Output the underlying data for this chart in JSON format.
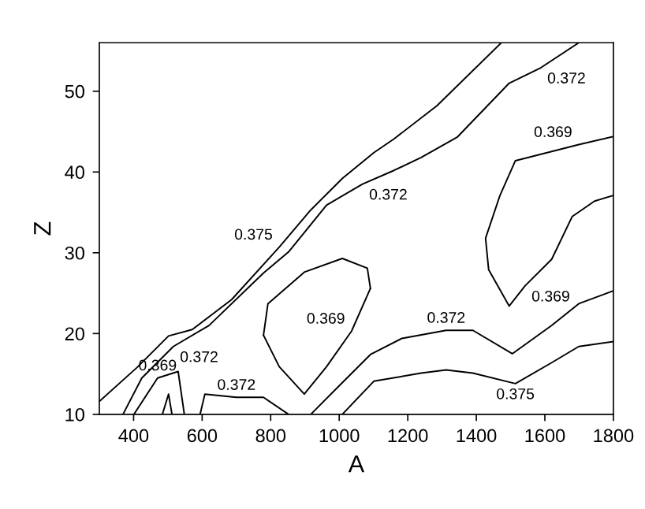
{
  "chart_data": {
    "type": "line",
    "xlabel": "A",
    "ylabel": "Z",
    "xlim": [
      300,
      1800
    ],
    "ylim": [
      10,
      56
    ],
    "xticks": [
      400,
      600,
      800,
      1000,
      1200,
      1400,
      1600,
      1800
    ],
    "yticks": [
      10,
      20,
      30,
      40,
      50
    ],
    "grid": false,
    "legend": false,
    "marker": "none",
    "line_style": "solid",
    "series": [
      {
        "color": "#000000",
        "x": [
          300,
          410,
          502,
          571,
          686,
          825,
          917,
          1009,
          1101,
          1160,
          1285,
          1473
        ],
        "values": [
          11.6,
          15.8,
          19.7,
          20.5,
          24.2,
          30.7,
          35.3,
          39.2,
          42.4,
          44.1,
          48.2,
          56
        ]
      },
      {
        "color": "#000000",
        "x": [
          369,
          424,
          516,
          620,
          779,
          852,
          963,
          1068,
          1160,
          1239,
          1344,
          1496,
          1588,
          1699
        ],
        "values": [
          10,
          14.5,
          18.4,
          21.0,
          27.5,
          30.1,
          35.9,
          38.5,
          40.2,
          41.8,
          44.3,
          51.0,
          52.9,
          56
        ]
      },
      {
        "color": "#000000",
        "x": [
          401,
          470,
          530,
          548
        ],
        "values": [
          10,
          14.5,
          15.3,
          10
        ]
      },
      {
        "color": "#000000",
        "x": [
          484,
          502,
          512
        ],
        "values": [
          10,
          12.5,
          10
        ]
      },
      {
        "color": "#000000",
        "x": [
          594,
          608,
          700,
          779,
          852
        ],
        "values": [
          10,
          12.5,
          12.1,
          12.1,
          10
        ]
      },
      {
        "color": "#000000",
        "x": [
          779,
          792,
          898,
          1009,
          1082,
          1091
        ],
        "values": [
          19.8,
          23.7,
          27.6,
          29.3,
          28.1,
          25.6
        ]
      },
      {
        "color": "#000000",
        "x": [
          779,
          825,
          898,
          963,
          1036,
          1091
        ],
        "values": [
          19.8,
          15.9,
          12.5,
          15.9,
          20.3,
          25.6
        ]
      },
      {
        "color": "#000000",
        "x": [
          917,
          999,
          1091,
          1183,
          1312,
          1390,
          1505,
          1620,
          1699,
          1800
        ],
        "values": [
          10,
          13.5,
          17.4,
          19.4,
          20.4,
          20.4,
          17.5,
          21.0,
          23.7,
          25.3
        ]
      },
      {
        "color": "#000000",
        "x": [
          1009,
          1101,
          1239,
          1312,
          1390,
          1514,
          1620,
          1699,
          1800
        ],
        "values": [
          10,
          14.1,
          15.1,
          15.5,
          15.1,
          13.8,
          16.4,
          18.4,
          19.0
        ]
      },
      {
        "color": "#000000",
        "x": [
          1800,
          1745,
          1680,
          1620,
          1542,
          1496,
          1436,
          1427,
          1469,
          1514,
          1699,
          1800
        ],
        "values": [
          37.1,
          36.4,
          34.5,
          29.2,
          25.9,
          23.4,
          27.9,
          31.8,
          37.1,
          41.4,
          43.4,
          44.4
        ]
      }
    ],
    "annotations": [
      {
        "text": "0.375",
        "x": 825,
        "y": 30.7
      },
      {
        "text": "0.372",
        "x": 1068,
        "y": 38.5
      },
      {
        "text": "0.372",
        "x": 1588,
        "y": 52.9
      },
      {
        "text": "0.369",
        "x": 1699,
        "y": 43.4
      },
      {
        "text": "0.369",
        "x": 1542,
        "y": 25.9
      },
      {
        "text": "0.372",
        "x": 516,
        "y": 18.4
      },
      {
        "text": "0.369",
        "x": 470,
        "y": 14.5
      },
      {
        "text": "0.372",
        "x": 700,
        "y": 12.1
      },
      {
        "text": "0.369",
        "x": 1036,
        "y": 20.3
      },
      {
        "text": "0.372",
        "x": 1312,
        "y": 20.4
      },
      {
        "text": "0.375",
        "x": 1514,
        "y": 13.8
      }
    ]
  }
}
